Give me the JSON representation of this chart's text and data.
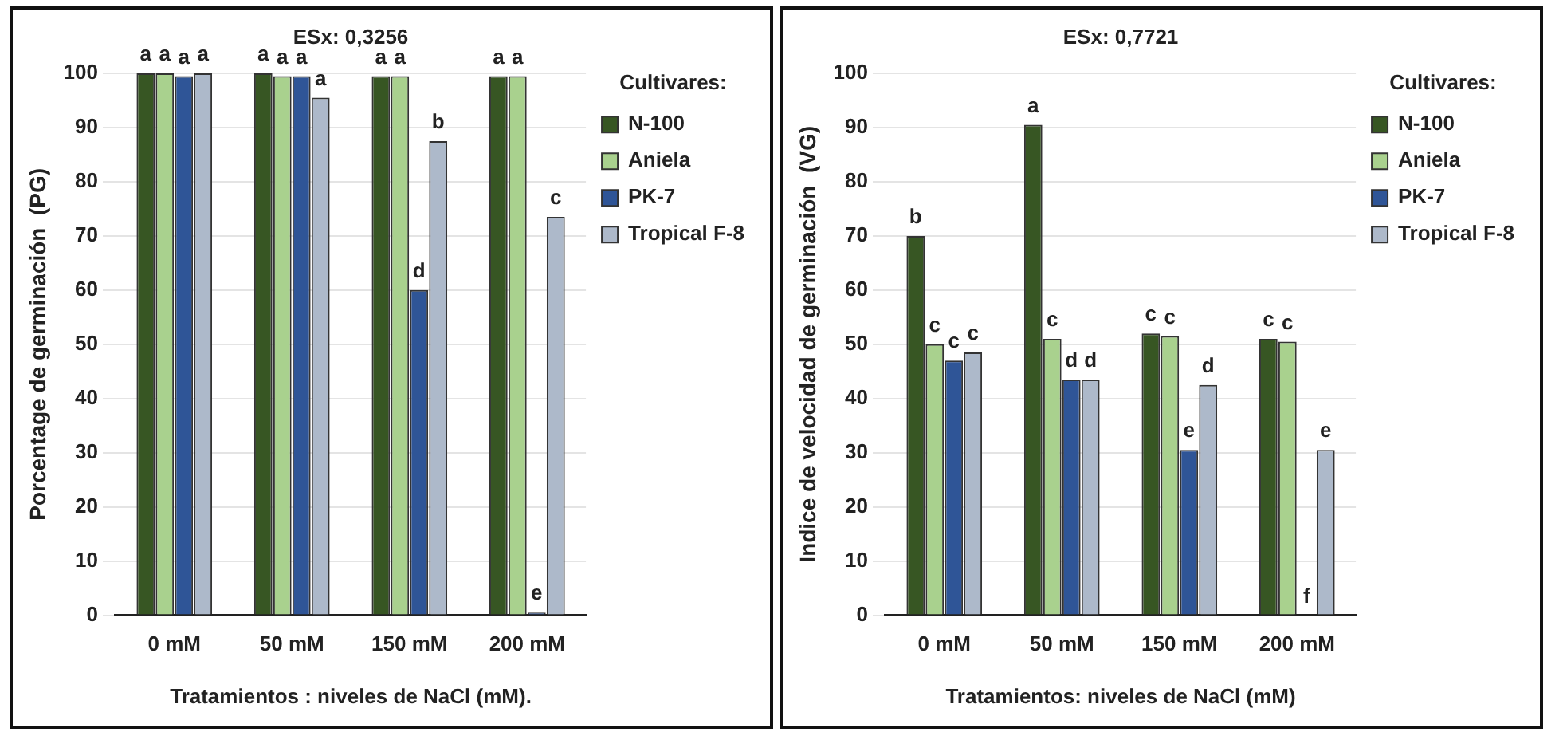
{
  "chart_data": [
    {
      "type": "bar",
      "categories": [
        "0 mM",
        "50 mM",
        "150 mM",
        "200 mM"
      ],
      "xlabel": "Tratamientos : niveles de NaCl (mM).",
      "ylabel": "Porcentage de germinación  (PG)",
      "ylim": [
        0,
        100
      ],
      "yticks": [
        0,
        10,
        20,
        30,
        40,
        50,
        60,
        70,
        80,
        90,
        100
      ],
      "grid": "y",
      "legend": "top right",
      "legend_title": "Cultivares:",
      "annotations": [
        "ESx: 0,3256"
      ],
      "series": [
        {
          "name": "N-100",
          "color": "#375623",
          "values": [
            100,
            100,
            99.5,
            99.5
          ],
          "value_labels": [
            "a",
            "a",
            "a",
            "a"
          ]
        },
        {
          "name": "Aniela",
          "color": "#a9d18e",
          "values": [
            100,
            99.5,
            99.5,
            99.5
          ],
          "value_labels": [
            "a",
            "a",
            "a",
            "a"
          ]
        },
        {
          "name": "PK-7",
          "color": "#2f5597",
          "values": [
            99.5,
            99.5,
            60,
            0.5
          ],
          "value_labels": [
            "a",
            "a",
            "d",
            "e"
          ]
        },
        {
          "name": "Tropical F-8",
          "color": "#adb9ca",
          "values": [
            100,
            95.5,
            87.5,
            73.5
          ],
          "value_labels": [
            "a",
            "a",
            "b",
            "c"
          ]
        }
      ]
    },
    {
      "type": "bar",
      "categories": [
        "0 mM",
        "50 mM",
        "150 mM",
        "200 mM"
      ],
      "xlabel": "Tratamientos: niveles de NaCl (mM)",
      "ylabel": "Indice de velocidad de germinación  (VG)",
      "ylim": [
        0,
        100
      ],
      "yticks": [
        0,
        10,
        20,
        30,
        40,
        50,
        60,
        70,
        80,
        90,
        100
      ],
      "grid": "y",
      "legend": "top right",
      "legend_title": "Cultivares:",
      "annotations": [
        "ESx: 0,7721"
      ],
      "series": [
        {
          "name": "N-100",
          "color": "#375623",
          "values": [
            70,
            90.5,
            52,
            51
          ],
          "value_labels": [
            "b",
            "a",
            "c",
            "c"
          ]
        },
        {
          "name": "Aniela",
          "color": "#a9d18e",
          "values": [
            50,
            51,
            51.5,
            50.5
          ],
          "value_labels": [
            "c",
            "c",
            "c",
            "c"
          ]
        },
        {
          "name": "PK-7",
          "color": "#2f5597",
          "values": [
            47,
            43.5,
            30.5,
            0
          ],
          "value_labels": [
            "c",
            "d",
            "e",
            "f"
          ]
        },
        {
          "name": "Tropical F-8",
          "color": "#adb9ca",
          "values": [
            48.5,
            43.5,
            42.5,
            30.5
          ],
          "value_labels": [
            "c",
            "d",
            "d",
            "e"
          ]
        }
      ]
    }
  ]
}
